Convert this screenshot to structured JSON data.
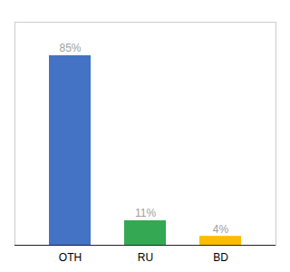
{
  "chart_data": {
    "type": "bar",
    "categories": [
      "OTH",
      "RU",
      "BD"
    ],
    "values": [
      85,
      11,
      4
    ],
    "value_labels": [
      "85%",
      "11%",
      "4%"
    ],
    "colors": [
      "#4472c4",
      "#34a853",
      "#fbbc04"
    ],
    "ylim": [
      0,
      100
    ],
    "data_labels": true,
    "tick_labels": "x",
    "grid": false
  }
}
